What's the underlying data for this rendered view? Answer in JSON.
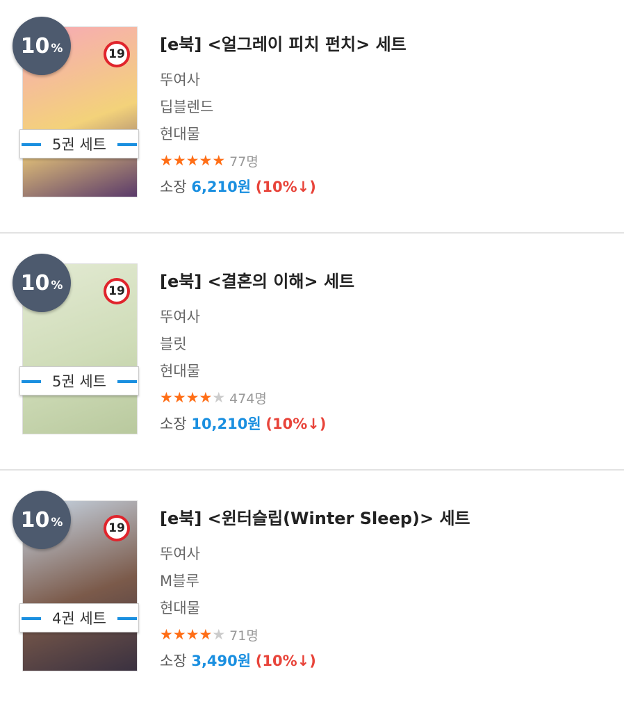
{
  "colors": {
    "badge": "#4d5a6e",
    "accent": "#1a8fe0",
    "discount": "#e8443a",
    "star": "#ff6e16"
  },
  "items": [
    {
      "badge_num": "10",
      "badge_unit": "%",
      "age": "19",
      "set": "5권 세트",
      "title": "[e북] <얼그레이 피치 펀치> 세트",
      "author": "뚜여사",
      "publisher": "딥블렌드",
      "genre": "현대물",
      "rating": 4.6,
      "stars": "★★★★★",
      "count": "77명",
      "own_label": "소장",
      "price": "6,210원",
      "discount": "(10%↓)",
      "cover_colors": [
        "#f7a8b8",
        "#f3d27a",
        "#5a3a6a"
      ]
    },
    {
      "badge_num": "10",
      "badge_unit": "%",
      "age": "19",
      "set": "5권 세트",
      "title": "[e북] <결혼의 이해> 세트",
      "author": "뚜여사",
      "publisher": "블릿",
      "genre": "현대물",
      "rating": 4.4,
      "stars": "★★★★★",
      "count": "474명",
      "own_label": "소장",
      "price": "10,210원",
      "discount": "(10%↓)",
      "cover_colors": [
        "#e3ead3",
        "#cfdcb8",
        "#b9c99e"
      ]
    },
    {
      "badge_num": "10",
      "badge_unit": "%",
      "age": "19",
      "set": "4권 세트",
      "title": "[e북] <윈터슬립(Winter Sleep)> 세트",
      "author": "뚜여사",
      "publisher": "M블루",
      "genre": "현대물",
      "rating": 4.3,
      "stars": "★★★★★",
      "count": "71명",
      "own_label": "소장",
      "price": "3,490원",
      "discount": "(10%↓)",
      "cover_colors": [
        "#c8d7e6",
        "#7b5a4a",
        "#3a3140"
      ]
    }
  ]
}
